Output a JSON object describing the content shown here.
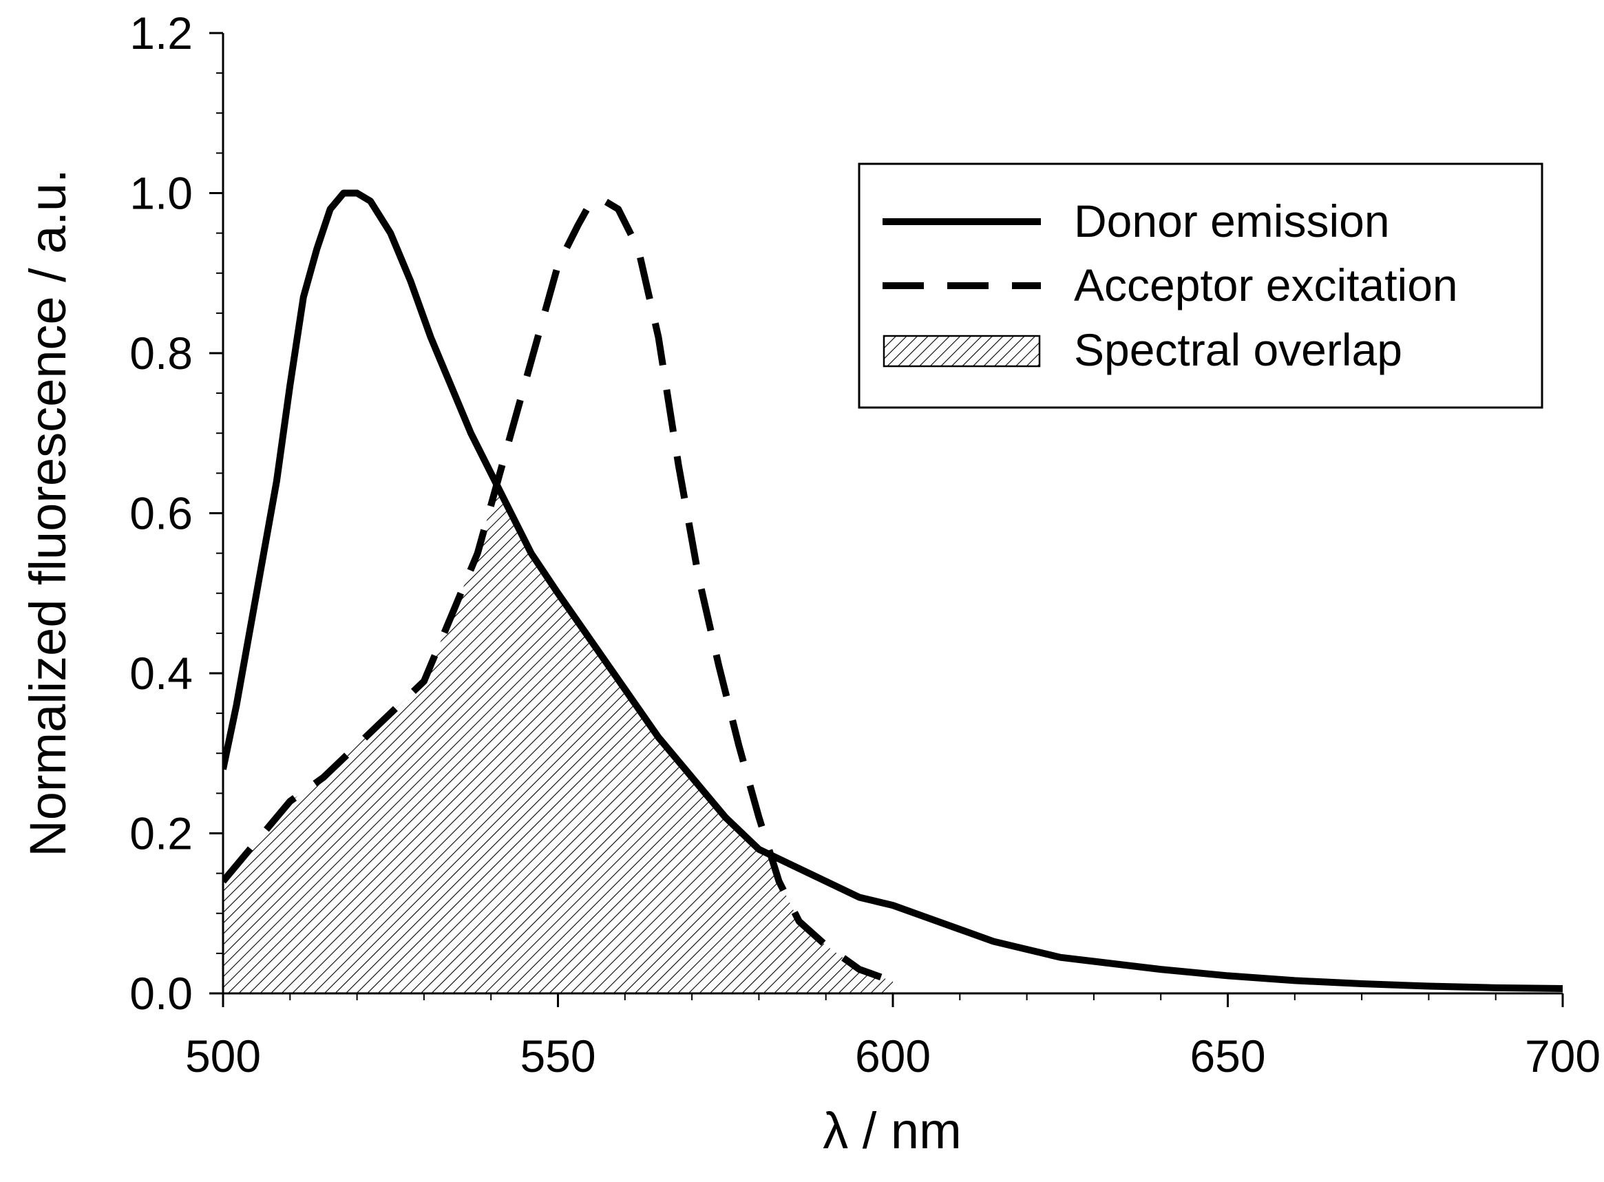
{
  "chart_data": {
    "type": "line",
    "title": "",
    "xlabel": "λ / nm",
    "ylabel": "Normalized fluorescence / a.u.",
    "xlim": [
      500,
      700
    ],
    "ylim": [
      0,
      1.2
    ],
    "xticks": [
      "500",
      "550",
      "600",
      "650",
      "700"
    ],
    "yticks": [
      "0.0",
      "0.2",
      "0.4",
      "0.6",
      "0.8",
      "1.0",
      "1.2"
    ],
    "grid": false,
    "legend_position": "top-right",
    "series": [
      {
        "name": "Donor emission",
        "style": "solid",
        "color": "#000000",
        "x": [
          500,
          502,
          505,
          508,
          510,
          512,
          514,
          516,
          518,
          520,
          522,
          525,
          528,
          531,
          534,
          537,
          540,
          543,
          546,
          550,
          555,
          560,
          565,
          570,
          575,
          580,
          585,
          590,
          595,
          600,
          605,
          610,
          615,
          620,
          625,
          630,
          640,
          650,
          660,
          670,
          680,
          690,
          700
        ],
        "y": [
          0.28,
          0.36,
          0.5,
          0.64,
          0.76,
          0.87,
          0.93,
          0.98,
          1.0,
          1.0,
          0.99,
          0.95,
          0.89,
          0.82,
          0.76,
          0.7,
          0.65,
          0.6,
          0.55,
          0.5,
          0.44,
          0.38,
          0.32,
          0.27,
          0.22,
          0.18,
          0.16,
          0.14,
          0.12,
          0.11,
          0.095,
          0.08,
          0.065,
          0.055,
          0.045,
          0.04,
          0.03,
          0.022,
          0.016,
          0.012,
          0.009,
          0.007,
          0.006
        ]
      },
      {
        "name": "Acceptor excitation",
        "style": "dashed",
        "color": "#000000",
        "x": [
          500,
          505,
          510,
          515,
          520,
          525,
          530,
          535,
          538,
          541,
          544,
          547,
          550,
          553,
          555,
          557,
          559,
          562,
          565,
          568,
          571,
          574,
          577,
          580,
          583,
          586,
          590,
          595,
          600
        ],
        "y": [
          0.14,
          0.19,
          0.24,
          0.27,
          0.31,
          0.35,
          0.39,
          0.49,
          0.55,
          0.64,
          0.73,
          0.82,
          0.91,
          0.96,
          0.99,
          0.99,
          0.98,
          0.93,
          0.82,
          0.66,
          0.52,
          0.41,
          0.31,
          0.22,
          0.14,
          0.09,
          0.06,
          0.03,
          0.015
        ]
      }
    ],
    "shaded_region": {
      "name": "Spectral overlap",
      "pattern": "diagonal hatch",
      "description_of": "area under the minimum of the two curves",
      "x_range": [
        500,
        600
      ]
    }
  }
}
